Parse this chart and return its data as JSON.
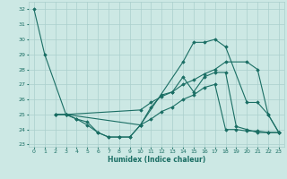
{
  "xlabel": "Humidex (Indice chaleur)",
  "bg_color": "#cce8e4",
  "grid_color": "#aacfcc",
  "line_color": "#1a6e64",
  "ylim": [
    23,
    32.5
  ],
  "xlim": [
    -0.5,
    23.5
  ],
  "yticks": [
    23,
    24,
    25,
    26,
    27,
    28,
    29,
    30,
    31,
    32
  ],
  "xticks": [
    0,
    1,
    2,
    3,
    4,
    5,
    6,
    7,
    8,
    9,
    10,
    11,
    12,
    13,
    14,
    15,
    16,
    17,
    18,
    19,
    20,
    21,
    22,
    23
  ],
  "series": [
    {
      "name": "s1_high_peak",
      "x": [
        0,
        1,
        3,
        4,
        5,
        6,
        7,
        8,
        9,
        10,
        14,
        15,
        16,
        17,
        18,
        20,
        21,
        22,
        23
      ],
      "y": [
        32,
        29,
        25,
        24.7,
        24.3,
        23.8,
        23.5,
        23.5,
        23.5,
        24.3,
        28.5,
        29.8,
        29.8,
        30.0,
        29.5,
        25.8,
        25.8,
        25.0,
        23.8
      ]
    },
    {
      "name": "s2_mid",
      "x": [
        2,
        3,
        4,
        5,
        6,
        7,
        8,
        9,
        10,
        11,
        12,
        13,
        14,
        15,
        16,
        17,
        18,
        19,
        20,
        21,
        22,
        23
      ],
      "y": [
        25,
        25,
        24.7,
        24.5,
        23.8,
        23.5,
        23.5,
        23.5,
        24.3,
        25.5,
        26.3,
        26.5,
        27.5,
        26.5,
        27.5,
        27.8,
        27.8,
        24.2,
        24.0,
        23.8,
        23.8,
        23.8
      ]
    },
    {
      "name": "s3_rising",
      "x": [
        2,
        3,
        10,
        11,
        12,
        13,
        14,
        15,
        16,
        17,
        18,
        20,
        21,
        22,
        23
      ],
      "y": [
        25,
        25,
        25.3,
        25.8,
        26.2,
        26.5,
        27.0,
        27.3,
        27.7,
        28.0,
        28.5,
        28.5,
        28.0,
        25.0,
        23.8
      ]
    },
    {
      "name": "s4_flat",
      "x": [
        2,
        3,
        10,
        11,
        12,
        13,
        14,
        15,
        16,
        17,
        18,
        19,
        20,
        21,
        22,
        23
      ],
      "y": [
        25,
        25,
        24.3,
        24.7,
        25.2,
        25.5,
        26.0,
        26.3,
        26.8,
        27.0,
        24.0,
        24.0,
        23.9,
        23.9,
        23.8,
        23.8
      ]
    }
  ]
}
